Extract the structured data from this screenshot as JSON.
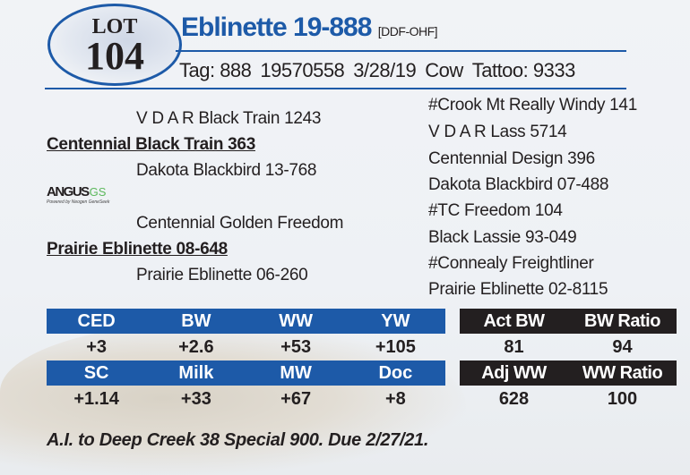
{
  "lot": {
    "label": "LOT",
    "number": "104"
  },
  "animal": {
    "name": "Eblinette 19-888",
    "registration_code": "[DDF-OHF]"
  },
  "details": {
    "tag": "Tag: 888",
    "reg_number": "19570558",
    "birth_date": "3/28/19",
    "sex": "Cow",
    "tattoo": "Tattoo: 9333"
  },
  "pedigree": {
    "sire_sire": "V D A R Black Train 1243",
    "sire": "Centennial Black Train 363",
    "sire_dam": "Dakota Blackbird 13-768",
    "dam_sire": "Centennial Golden Freedom",
    "dam": "Prairie Eblinette 08-648",
    "dam_dam": "Prairie Eblinette 06-260",
    "great_grandparents": [
      "#Crook Mt Really Windy 141",
      "V D A R Lass 5714",
      "Centennial Design 396",
      "Dakota Blackbird 07-488",
      "#TC Freedom 104",
      "Black Lassie 93-049",
      "#Connealy Freightliner",
      "Prairie Eblinette 02-8115"
    ]
  },
  "logo": {
    "brand": "ANGUS",
    "suffix": "GS",
    "tagline": "Powered by Neogen GeneSeek"
  },
  "epds": {
    "row1": {
      "headers": [
        "CED",
        "BW",
        "WW",
        "YW"
      ],
      "values": [
        "+3",
        "+2.6",
        "+53",
        "+105"
      ]
    },
    "row2": {
      "headers": [
        "SC",
        "Milk",
        "MW",
        "Doc"
      ],
      "values": [
        "+1.14",
        "+33",
        "+67",
        "+8"
      ]
    }
  },
  "performance": {
    "row1": {
      "headers": [
        "Act BW",
        "BW Ratio"
      ],
      "values": [
        "81",
        "94"
      ]
    },
    "row2": {
      "headers": [
        "Adj WW",
        "WW Ratio"
      ],
      "values": [
        "628",
        "100"
      ]
    }
  },
  "footnote": "A.I. to Deep Creek 38 Special 900. Due 2/27/21.",
  "colors": {
    "brand_blue": "#1d5aa8",
    "dark": "#231f20"
  }
}
